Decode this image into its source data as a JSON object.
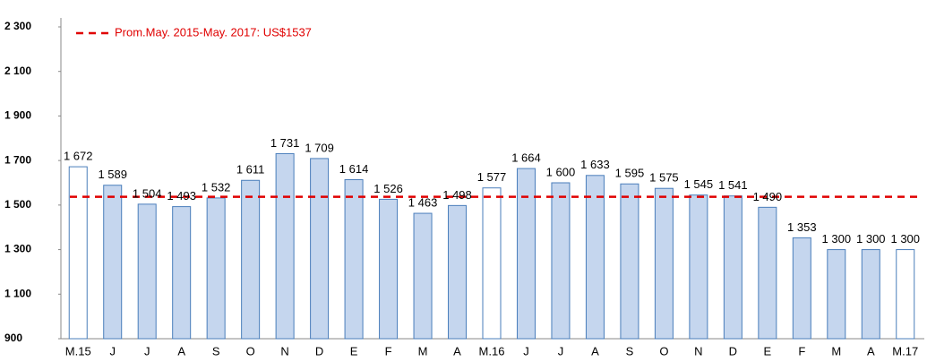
{
  "chart_data": {
    "type": "bar",
    "categories": [
      "M.15",
      "J",
      "J",
      "A",
      "S",
      "O",
      "N",
      "D",
      "E",
      "F",
      "M",
      "A",
      "M.16",
      "J",
      "J",
      "A",
      "S",
      "O",
      "N",
      "D",
      "E",
      "F",
      "M",
      "A",
      "M.17"
    ],
    "values": [
      1672,
      1589,
      1504,
      1493,
      1532,
      1611,
      1731,
      1709,
      1614,
      1526,
      1463,
      1498,
      1577,
      1664,
      1600,
      1633,
      1595,
      1575,
      1545,
      1541,
      1490,
      1353,
      1300,
      1300,
      1300
    ],
    "value_labels": [
      "1 672",
      "1 589",
      "1 504",
      "1 493",
      "1 532",
      "1 611",
      "1 731",
      "1 709",
      "1 614",
      "1 526",
      "1 463",
      "1 498",
      "1 577",
      "1 664",
      "1 600",
      "1 633",
      "1 595",
      "1 575",
      "1 545",
      "1 541",
      "1 490",
      "1 353",
      "1 300",
      "1 300",
      "1 300"
    ],
    "colors": [
      "#ffffff",
      "#c5d6ee",
      "#c5d6ee",
      "#c5d6ee",
      "#c5d6ee",
      "#c5d6ee",
      "#c5d6ee",
      "#c5d6ee",
      "#c5d6ee",
      "#c5d6ee",
      "#c5d6ee",
      "#c5d6ee",
      "#ffffff",
      "#c5d6ee",
      "#c5d6ee",
      "#c5d6ee",
      "#c5d6ee",
      "#c5d6ee",
      "#c5d6ee",
      "#c5d6ee",
      "#c5d6ee",
      "#c5d6ee",
      "#c5d6ee",
      "#c5d6ee",
      "#ffffff"
    ],
    "border_color": "#4a7ebb",
    "ylim": [
      900,
      2300
    ],
    "yticks": [
      900,
      {
        "value": 1100,
        "label": "1 100"
      },
      {
        "value": 1300,
        "label": "1 300"
      },
      {
        "value": 1500,
        "label": "1 500"
      },
      {
        "value": 1700,
        "label": "1 700"
      },
      {
        "value": 1900,
        "label": "1 900"
      },
      {
        "value": 2100,
        "label": "2 100"
      },
      {
        "value": 2300,
        "label": "2 300"
      }
    ],
    "grid": false,
    "reference_line": {
      "value": 1537,
      "label": "Prom.May. 2015-May. 2017: US$1537",
      "color": "#e00000"
    }
  }
}
